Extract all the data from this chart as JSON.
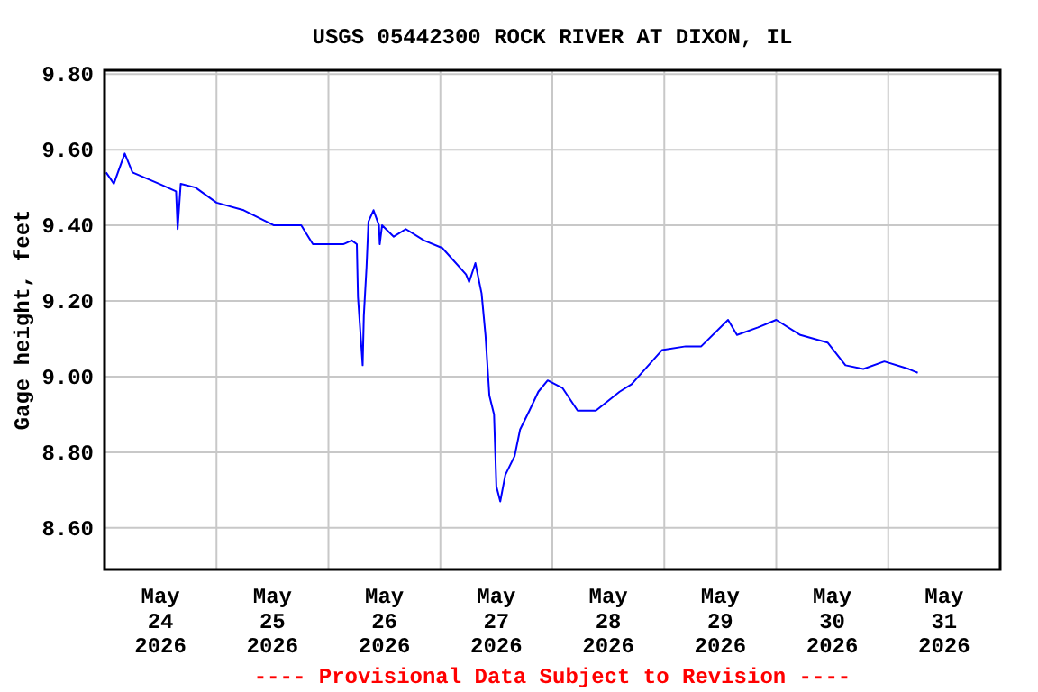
{
  "chart_data": {
    "type": "line",
    "title": "USGS 05442300 ROCK RIVER AT DIXON, IL",
    "ylabel": "Gage height, feet",
    "annotations": [
      "---- Provisional Data Subject to Revision ----"
    ],
    "x": [
      "2026-05-24T00:20",
      "2026-05-24T02:00",
      "2026-05-24T04:20",
      "2026-05-24T06:00",
      "2026-05-24T11:40",
      "2026-05-24T15:20",
      "2026-05-24T15:40",
      "2026-05-24T16:20",
      "2026-05-24T19:30",
      "2026-05-25T00:00",
      "2026-05-25T05:50",
      "2026-05-25T12:20",
      "2026-05-25T18:10",
      "2026-05-25T20:40",
      "2026-05-26T03:10",
      "2026-05-26T05:00",
      "2026-05-26T06:05",
      "2026-05-26T06:20",
      "2026-05-26T07:20",
      "2026-05-26T07:35",
      "2026-05-26T08:10",
      "2026-05-26T08:35",
      "2026-05-26T09:40",
      "2026-05-26T10:50",
      "2026-05-26T11:00",
      "2026-05-26T11:30",
      "2026-05-26T14:00",
      "2026-05-26T16:35",
      "2026-05-26T20:30",
      "2026-05-27T00:25",
      "2026-05-27T05:30",
      "2026-05-27T06:10",
      "2026-05-27T07:30",
      "2026-05-27T08:50",
      "2026-05-27T09:40",
      "2026-05-27T10:30",
      "2026-05-27T11:30",
      "2026-05-27T12:00",
      "2026-05-27T12:50",
      "2026-05-27T13:55",
      "2026-05-27T15:55",
      "2026-05-27T17:05",
      "2026-05-27T19:05",
      "2026-05-27T21:00",
      "2026-05-27T23:00",
      "2026-05-28T02:10",
      "2026-05-28T05:25",
      "2026-05-28T09:20",
      "2026-05-28T14:25",
      "2026-05-28T17:00",
      "2026-05-28T23:30",
      "2026-05-29T04:35",
      "2026-05-29T07:55",
      "2026-05-29T13:40",
      "2026-05-29T15:35",
      "2026-05-29T20:05",
      "2026-05-30T00:00",
      "2026-05-30T05:10",
      "2026-05-30T11:00",
      "2026-05-30T14:50",
      "2026-05-30T18:40",
      "2026-05-30T23:10",
      "2026-05-31T04:25",
      "2026-05-31T06:20"
    ],
    "series": [
      {
        "color": "#0000ff",
        "values": [
          9.54,
          9.51,
          9.59,
          9.54,
          9.51,
          9.49,
          9.39,
          9.51,
          9.5,
          9.46,
          9.44,
          9.4,
          9.4,
          9.35,
          9.35,
          9.36,
          9.35,
          9.21,
          9.03,
          9.16,
          9.29,
          9.41,
          9.44,
          9.4,
          9.35,
          9.4,
          9.37,
          9.39,
          9.36,
          9.34,
          9.27,
          9.25,
          9.3,
          9.22,
          9.11,
          8.95,
          8.9,
          8.71,
          8.67,
          8.74,
          8.79,
          8.86,
          8.91,
          8.96,
          8.99,
          8.97,
          8.91,
          8.91,
          8.96,
          8.98,
          9.07,
          9.08,
          9.08,
          9.15,
          9.11,
          9.13,
          9.15,
          9.11,
          9.09,
          9.03,
          9.02,
          9.04,
          9.02,
          9.01
        ]
      }
    ],
    "xlim": [
      "2026-05-24T00:00",
      "2026-06-01T00:00"
    ],
    "xticks": [
      {
        "value": "2026-05-24T12:00",
        "label": "May\n24\n2026"
      },
      {
        "value": "2026-05-25T00:00",
        "label": null
      },
      {
        "value": "2026-05-25T12:00",
        "label": "May\n25\n2026"
      },
      {
        "value": "2026-05-26T00:00",
        "label": null
      },
      {
        "value": "2026-05-26T12:00",
        "label": "May\n26\n2026"
      },
      {
        "value": "2026-05-27T00:00",
        "label": null
      },
      {
        "value": "2026-05-27T12:00",
        "label": "May\n27\n2026"
      },
      {
        "value": "2026-05-28T00:00",
        "label": null
      },
      {
        "value": "2026-05-28T12:00",
        "label": "May\n28\n2026"
      },
      {
        "value": "2026-05-29T00:00",
        "label": null
      },
      {
        "value": "2026-05-29T12:00",
        "label": "May\n29\n2026"
      },
      {
        "value": "2026-05-30T00:00",
        "label": null
      },
      {
        "value": "2026-05-30T12:00",
        "label": "May\n30\n2026"
      },
      {
        "value": "2026-05-31T00:00",
        "label": null
      },
      {
        "value": "2026-05-31T12:00",
        "label": "May\n31\n2026"
      }
    ],
    "ylim": [
      8.49,
      9.81
    ],
    "yticks": [
      {
        "value": 8.6,
        "label": "8.60"
      },
      {
        "value": 8.8,
        "label": "8.80"
      },
      {
        "value": 9.0,
        "label": "9.00"
      },
      {
        "value": 9.2,
        "label": "9.20"
      },
      {
        "value": 9.4,
        "label": "9.40"
      },
      {
        "value": 9.6,
        "label": "9.60"
      },
      {
        "value": 9.8,
        "label": "9.80"
      }
    ],
    "grid": true,
    "marker": "none",
    "line_style": "solid"
  }
}
